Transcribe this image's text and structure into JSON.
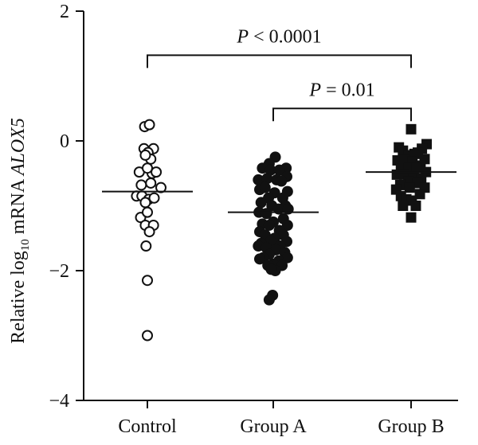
{
  "chart_data": {
    "type": "scatter",
    "ylabel": {
      "prefix": "Relative log",
      "sub": "10",
      "suffix": " mRNA ",
      "gene": "ALOX5"
    },
    "ylim": [
      -4,
      2
    ],
    "yticks": [
      2,
      0,
      -2,
      -4
    ],
    "ytick_labels": [
      "2",
      "0",
      "−2",
      "−4"
    ],
    "categories": [
      "Control",
      "Group A",
      "Group B"
    ],
    "grid": false,
    "series": [
      {
        "category": "Control",
        "marker": "open-circle",
        "mean": -0.78,
        "points": [
          [
            -0.4,
            0.22
          ],
          [
            0.3,
            0.25
          ],
          [
            0.9,
            -0.12
          ],
          [
            -0.5,
            -0.12
          ],
          [
            0.1,
            -0.18
          ],
          [
            0.5,
            -0.28
          ],
          [
            -0.3,
            -0.22
          ],
          [
            0.7,
            -0.5
          ],
          [
            -1.2,
            -0.48
          ],
          [
            0.0,
            -0.42
          ],
          [
            1.3,
            -0.48
          ],
          [
            -0.9,
            -0.68
          ],
          [
            0.5,
            -0.65
          ],
          [
            2.0,
            -0.72
          ],
          [
            -1.6,
            -0.85
          ],
          [
            -0.8,
            -0.85
          ],
          [
            0.2,
            -0.9
          ],
          [
            1.0,
            -0.88
          ],
          [
            -0.3,
            -0.95
          ],
          [
            -1.0,
            -1.18
          ],
          [
            0.0,
            -1.1
          ],
          [
            -0.3,
            -1.3
          ],
          [
            0.9,
            -1.3
          ],
          [
            0.3,
            -1.4
          ],
          [
            -0.2,
            -1.62
          ],
          [
            0.0,
            -2.15
          ],
          [
            0.0,
            -3.0
          ]
        ]
      },
      {
        "category": "Group A",
        "marker": "filled-circle",
        "mean": -1.1,
        "points": [
          [
            0.3,
            -0.25
          ],
          [
            -0.6,
            -0.35
          ],
          [
            -1.6,
            -0.42
          ],
          [
            1.9,
            -0.42
          ],
          [
            -0.4,
            -0.45
          ],
          [
            0.9,
            -0.45
          ],
          [
            2.0,
            -0.55
          ],
          [
            -2.2,
            -0.6
          ],
          [
            -0.9,
            -0.58
          ],
          [
            0.5,
            -0.6
          ],
          [
            1.2,
            -0.62
          ],
          [
            2.1,
            -0.78
          ],
          [
            -2.0,
            -0.75
          ],
          [
            -1.2,
            -0.72
          ],
          [
            0.2,
            -0.8
          ],
          [
            1.4,
            -0.88
          ],
          [
            -0.7,
            -0.88
          ],
          [
            1.8,
            -1.0
          ],
          [
            -1.8,
            -0.95
          ],
          [
            -0.2,
            -1.0
          ],
          [
            0.8,
            -1.05
          ],
          [
            2.2,
            -1.05
          ],
          [
            -2.1,
            -1.1
          ],
          [
            -1.0,
            -1.12
          ],
          [
            1.5,
            -1.2
          ],
          [
            0.0,
            -1.25
          ],
          [
            -1.6,
            -1.28
          ],
          [
            -0.6,
            -1.3
          ],
          [
            2.1,
            -1.3
          ],
          [
            0.9,
            -1.38
          ],
          [
            -2.0,
            -1.4
          ],
          [
            1.5,
            -1.45
          ],
          [
            -1.2,
            -1.45
          ],
          [
            0.2,
            -1.5
          ],
          [
            -0.4,
            -1.55
          ],
          [
            2.0,
            -1.55
          ],
          [
            -1.8,
            -1.58
          ],
          [
            1.0,
            -1.62
          ],
          [
            -2.2,
            -1.62
          ],
          [
            -1.0,
            -1.65
          ],
          [
            0.4,
            -1.68
          ],
          [
            1.7,
            -1.72
          ],
          [
            -0.6,
            -1.75
          ],
          [
            -1.5,
            -1.8
          ],
          [
            2.1,
            -1.8
          ],
          [
            -2.0,
            -1.82
          ],
          [
            0.8,
            -1.85
          ],
          [
            0.0,
            -1.9
          ],
          [
            -0.8,
            -1.92
          ],
          [
            1.3,
            -1.92
          ],
          [
            0.3,
            -2.0
          ],
          [
            -0.3,
            -1.98
          ],
          [
            -0.1,
            -2.38
          ],
          [
            -0.6,
            -2.45
          ]
        ]
      },
      {
        "category": "Group B",
        "marker": "filled-square",
        "mean": -0.48,
        "points": [
          [
            0.0,
            0.18
          ],
          [
            2.3,
            -0.05
          ],
          [
            -1.8,
            -0.1
          ],
          [
            -1.2,
            -0.15
          ],
          [
            1.6,
            -0.12
          ],
          [
            0.5,
            -0.2
          ],
          [
            -0.4,
            -0.22
          ],
          [
            1.0,
            -0.18
          ],
          [
            2.0,
            -0.28
          ],
          [
            -2.0,
            -0.3
          ],
          [
            -0.9,
            -0.3
          ],
          [
            0.2,
            -0.32
          ],
          [
            1.4,
            -0.38
          ],
          [
            -1.5,
            -0.4
          ],
          [
            -0.3,
            -0.42
          ],
          [
            0.8,
            -0.42
          ],
          [
            2.2,
            -0.48
          ],
          [
            -2.1,
            -0.52
          ],
          [
            -1.0,
            -0.52
          ],
          [
            0.4,
            -0.55
          ],
          [
            1.5,
            -0.58
          ],
          [
            -0.4,
            -0.62
          ],
          [
            -1.6,
            -0.68
          ],
          [
            0.9,
            -0.65
          ],
          [
            2.0,
            -0.72
          ],
          [
            -2.2,
            -0.75
          ],
          [
            -0.2,
            -0.72
          ],
          [
            1.3,
            -0.82
          ],
          [
            -1.5,
            -0.85
          ],
          [
            -0.7,
            -0.9
          ],
          [
            0.1,
            -0.92
          ],
          [
            -1.2,
            -1.0
          ],
          [
            0.7,
            -1.0
          ],
          [
            0.0,
            -1.18
          ]
        ]
      }
    ],
    "annotations": [
      {
        "from": "Control",
        "to": "Group B",
        "p_label": "P",
        "p_text": " < 0.0001",
        "level": 1.32
      },
      {
        "from": "Group A",
        "to": "Group B",
        "p_label": "P",
        "p_text": " = 0.01",
        "level": 0.5
      }
    ]
  }
}
